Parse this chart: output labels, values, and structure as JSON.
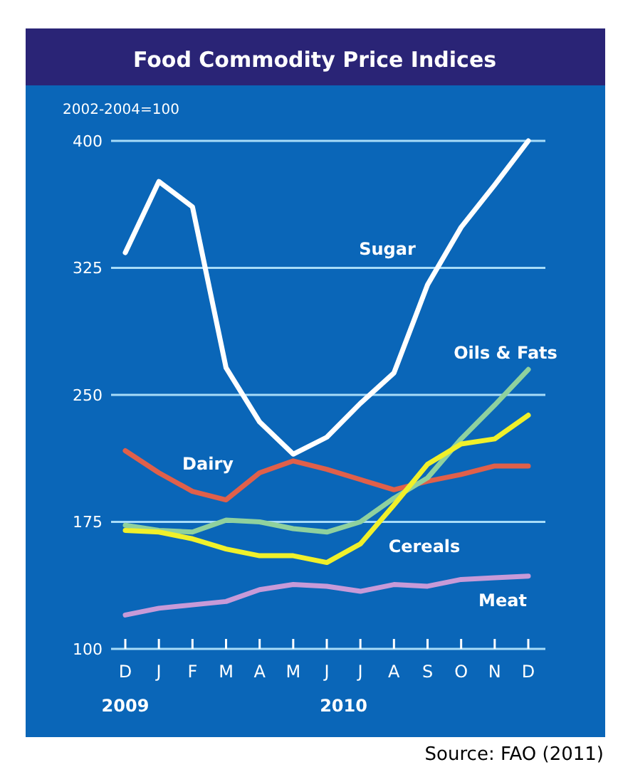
{
  "chart_data": {
    "type": "line",
    "title": "Food Commodity Price Indices",
    "ylabel": "2002-2004=100",
    "categories": [
      "D",
      "J",
      "F",
      "M",
      "A",
      "M",
      "J",
      "J",
      "A",
      "S",
      "O",
      "N",
      "D"
    ],
    "ylim": [
      100,
      400
    ],
    "yticks": [
      100,
      175,
      250,
      325,
      400
    ],
    "grid": "y",
    "marker": "none",
    "line_style": "solid",
    "series": [
      {
        "name": "Sugar",
        "color": "#ffffff",
        "values": [
          334,
          376,
          361,
          266,
          234,
          215,
          225,
          245,
          263,
          315,
          349,
          374,
          400
        ]
      },
      {
        "name": "Dairy",
        "color": "#e0604a",
        "values": [
          217,
          204,
          193,
          188,
          204,
          211,
          206,
          200,
          194,
          199,
          203,
          208,
          208
        ]
      },
      {
        "name": "Oils & Fats",
        "color": "#8fd19e",
        "values": [
          173,
          170,
          169,
          176,
          175,
          171,
          169,
          175,
          189,
          201,
          224,
          244,
          265
        ]
      },
      {
        "name": "Cereals",
        "color": "#f0f02a",
        "values": [
          170,
          169,
          165,
          159,
          155,
          155,
          151,
          162,
          185,
          209,
          221,
          224,
          238
        ]
      },
      {
        "name": "Meat",
        "color": "#c79ad8",
        "values": [
          120,
          124,
          126,
          128,
          135,
          138,
          137,
          134,
          138,
          137,
          141,
          142,
          143
        ]
      }
    ],
    "annotations": [
      "2009",
      "2010",
      "Source: FAO (2011)"
    ]
  }
}
